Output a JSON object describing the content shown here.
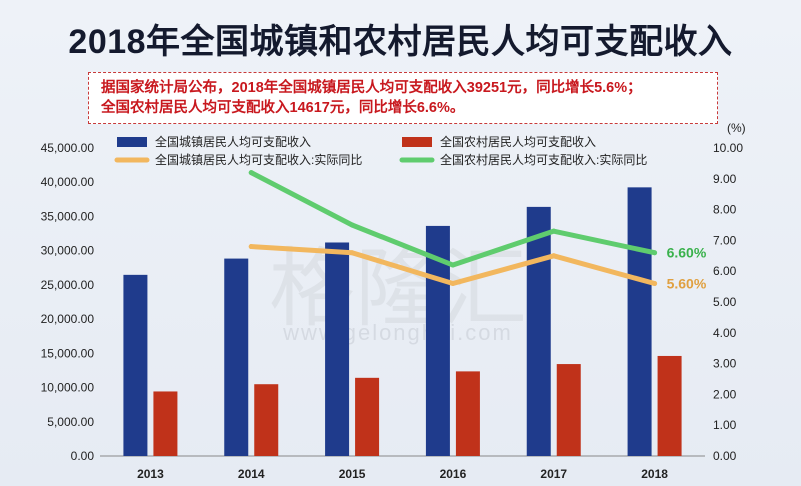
{
  "title": "2018年全国城镇和农村居民人均可支配收入",
  "note": {
    "line1": "据国家统计局公布，2018年全国城镇居民人均可支配收入39251元，同比增长5.6%；",
    "line2": "全国农村居民人均可支配收入14617元，同比增长6.6%。"
  },
  "watermark": {
    "main": "格隆汇",
    "url": "www.gelonghui.com"
  },
  "colors": {
    "urban": "#1f3b8c",
    "rural": "#c0321a",
    "urban_growth": "#f2b75e",
    "rural_growth": "#5fcc6e",
    "border": "#c83a3a"
  },
  "chart_data": {
    "type": "bar+line",
    "categories": [
      "2013",
      "2014",
      "2015",
      "2016",
      "2017",
      "2018"
    ],
    "left_axis": {
      "ylim": [
        0,
        45000
      ],
      "ticks": [
        "0.00",
        "5,000.00",
        "10,000.00",
        "15,000.00",
        "20,000.00",
        "25,000.00",
        "30,000.00",
        "35,000.00",
        "40,000.00",
        "45,000.00"
      ]
    },
    "right_axis": {
      "unit": "(%)",
      "ylim": [
        0,
        10
      ],
      "ticks": [
        "0.00",
        "1.00",
        "2.00",
        "3.00",
        "4.00",
        "5.00",
        "6.00",
        "7.00",
        "8.00",
        "9.00",
        "10.00"
      ]
    },
    "series": [
      {
        "name": "全国城镇居民人均可支配收入",
        "kind": "bar",
        "axis": "left",
        "color": "#1f3b8c",
        "values": [
          26467,
          28844,
          31195,
          33616,
          36396,
          39251
        ]
      },
      {
        "name": "全国农村居民人均可支配收入",
        "kind": "bar",
        "axis": "left",
        "color": "#c0321a",
        "values": [
          9430,
          10489,
          11422,
          12363,
          13432,
          14617
        ]
      },
      {
        "name": "全国城镇居民人均可支配收入:实际同比",
        "kind": "line",
        "axis": "right",
        "color": "#f2b75e",
        "values": [
          null,
          6.8,
          6.6,
          5.6,
          6.5,
          5.6
        ],
        "end_label": "5.60%"
      },
      {
        "name": "全国农村居民人均可支配收入:实际同比",
        "kind": "line",
        "axis": "right",
        "color": "#5fcc6e",
        "values": [
          null,
          9.2,
          7.5,
          6.2,
          7.3,
          6.6
        ],
        "end_label": "6.60%"
      }
    ]
  }
}
